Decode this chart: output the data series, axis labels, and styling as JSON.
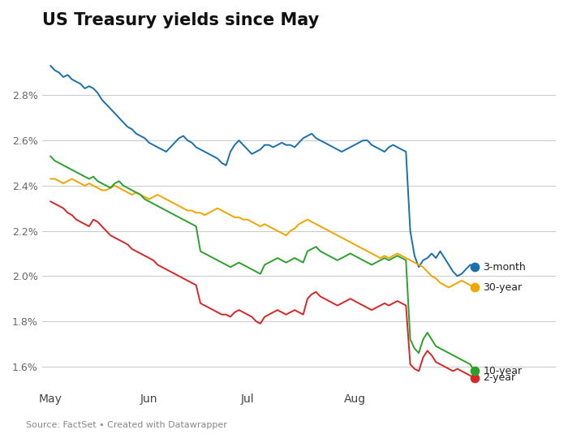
{
  "title": "US Treasury yields since May",
  "source_text": "Source: FactSet • Created with Datawrapper",
  "background_color": "#ffffff",
  "plot_bg_color": "#ffffff",
  "grid_color": "#cccccc",
  "colors": {
    "3month": "#1a6faf",
    "30year": "#f0a500",
    "2year": "#d62728",
    "10year": "#2ca02c"
  },
  "ylim": [
    1.5,
    3.05
  ],
  "yticks": [
    1.6,
    1.8,
    2.0,
    2.2,
    2.4,
    2.6,
    2.8
  ],
  "ytick_labels": [
    "1.6%",
    "1.8%",
    "2.0%",
    "2.2%",
    "2.4%",
    "2.6%",
    "2.8%"
  ],
  "xtick_positions": [
    0,
    23,
    46,
    71
  ],
  "xtick_labels": [
    "May",
    "Jun",
    "Jul",
    "Aug"
  ],
  "vals_3month": [
    2.93,
    2.91,
    2.9,
    2.88,
    2.89,
    2.87,
    2.86,
    2.85,
    2.83,
    2.84,
    2.83,
    2.81,
    2.78,
    2.76,
    2.74,
    2.72,
    2.7,
    2.68,
    2.66,
    2.65,
    2.63,
    2.62,
    2.61,
    2.59,
    2.58,
    2.57,
    2.56,
    2.55,
    2.57,
    2.59,
    2.61,
    2.62,
    2.6,
    2.59,
    2.57,
    2.56,
    2.55,
    2.54,
    2.53,
    2.52,
    2.5,
    2.49,
    2.55,
    2.58,
    2.6,
    2.58,
    2.56,
    2.54,
    2.55,
    2.56,
    2.58,
    2.58,
    2.57,
    2.58,
    2.59,
    2.58,
    2.58,
    2.57,
    2.59,
    2.61,
    2.62,
    2.63,
    2.61,
    2.6,
    2.59,
    2.58,
    2.57,
    2.56,
    2.55,
    2.56,
    2.57,
    2.58,
    2.59,
    2.6,
    2.6,
    2.58,
    2.57,
    2.56,
    2.55,
    2.57,
    2.58,
    2.57,
    2.56,
    2.55,
    2.2,
    2.09,
    2.04,
    2.07,
    2.08,
    2.1,
    2.08,
    2.11,
    2.08,
    2.05,
    2.02,
    2.0,
    2.01,
    2.03,
    2.05,
    2.04
  ],
  "vals_30year": [
    2.43,
    2.43,
    2.42,
    2.41,
    2.42,
    2.43,
    2.42,
    2.41,
    2.4,
    2.41,
    2.4,
    2.39,
    2.38,
    2.38,
    2.39,
    2.4,
    2.39,
    2.38,
    2.37,
    2.36,
    2.37,
    2.36,
    2.35,
    2.34,
    2.35,
    2.36,
    2.35,
    2.34,
    2.33,
    2.32,
    2.31,
    2.3,
    2.29,
    2.29,
    2.28,
    2.28,
    2.27,
    2.28,
    2.29,
    2.3,
    2.29,
    2.28,
    2.27,
    2.26,
    2.26,
    2.25,
    2.25,
    2.24,
    2.23,
    2.22,
    2.23,
    2.22,
    2.21,
    2.2,
    2.19,
    2.18,
    2.2,
    2.21,
    2.23,
    2.24,
    2.25,
    2.24,
    2.23,
    2.22,
    2.21,
    2.2,
    2.19,
    2.18,
    2.17,
    2.16,
    2.15,
    2.14,
    2.13,
    2.12,
    2.11,
    2.1,
    2.09,
    2.08,
    2.09,
    2.08,
    2.09,
    2.1,
    2.09,
    2.08,
    2.07,
    2.06,
    2.05,
    2.04,
    2.02,
    2.0,
    1.99,
    1.97,
    1.96,
    1.95,
    1.96,
    1.97,
    1.98,
    1.97,
    1.96,
    1.95
  ],
  "vals_2year": [
    2.33,
    2.32,
    2.31,
    2.3,
    2.28,
    2.27,
    2.25,
    2.24,
    2.23,
    2.22,
    2.25,
    2.24,
    2.22,
    2.2,
    2.18,
    2.17,
    2.16,
    2.15,
    2.14,
    2.12,
    2.11,
    2.1,
    2.09,
    2.08,
    2.07,
    2.05,
    2.04,
    2.03,
    2.02,
    2.01,
    2.0,
    1.99,
    1.98,
    1.97,
    1.96,
    1.88,
    1.87,
    1.86,
    1.85,
    1.84,
    1.83,
    1.83,
    1.82,
    1.84,
    1.85,
    1.84,
    1.83,
    1.82,
    1.8,
    1.79,
    1.82,
    1.83,
    1.84,
    1.85,
    1.84,
    1.83,
    1.84,
    1.85,
    1.84,
    1.83,
    1.9,
    1.92,
    1.93,
    1.91,
    1.9,
    1.89,
    1.88,
    1.87,
    1.88,
    1.89,
    1.9,
    1.89,
    1.88,
    1.87,
    1.86,
    1.85,
    1.86,
    1.87,
    1.88,
    1.87,
    1.88,
    1.89,
    1.88,
    1.87,
    1.61,
    1.59,
    1.58,
    1.64,
    1.67,
    1.65,
    1.62,
    1.61,
    1.6,
    1.59,
    1.58,
    1.59,
    1.58,
    1.57,
    1.56,
    1.55
  ],
  "vals_10year": [
    2.53,
    2.51,
    2.5,
    2.49,
    2.48,
    2.47,
    2.46,
    2.45,
    2.44,
    2.43,
    2.44,
    2.42,
    2.41,
    2.4,
    2.39,
    2.41,
    2.42,
    2.4,
    2.39,
    2.38,
    2.37,
    2.36,
    2.34,
    2.33,
    2.32,
    2.31,
    2.3,
    2.29,
    2.28,
    2.27,
    2.26,
    2.25,
    2.24,
    2.23,
    2.22,
    2.11,
    2.1,
    2.09,
    2.08,
    2.07,
    2.06,
    2.05,
    2.04,
    2.05,
    2.06,
    2.05,
    2.04,
    2.03,
    2.02,
    2.01,
    2.05,
    2.06,
    2.07,
    2.08,
    2.07,
    2.06,
    2.07,
    2.08,
    2.07,
    2.06,
    2.11,
    2.12,
    2.13,
    2.11,
    2.1,
    2.09,
    2.08,
    2.07,
    2.08,
    2.09,
    2.1,
    2.09,
    2.08,
    2.07,
    2.06,
    2.05,
    2.06,
    2.07,
    2.08,
    2.07,
    2.08,
    2.09,
    2.08,
    2.07,
    1.72,
    1.68,
    1.66,
    1.72,
    1.75,
    1.72,
    1.69,
    1.68,
    1.67,
    1.66,
    1.65,
    1.64,
    1.63,
    1.62,
    1.61,
    1.58
  ]
}
